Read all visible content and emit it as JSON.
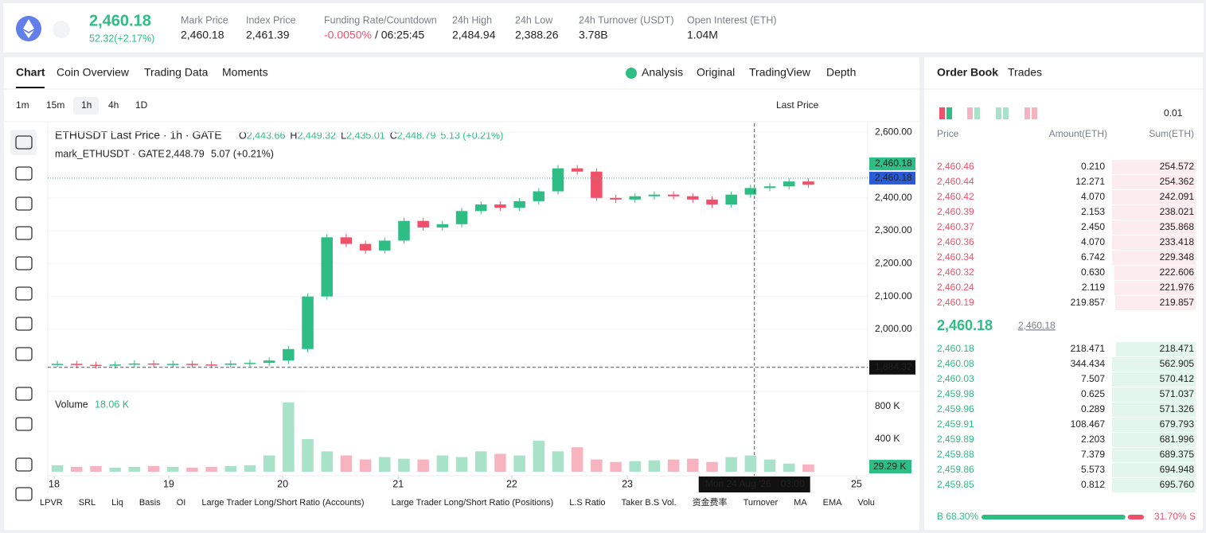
{
  "header": {
    "price": "2,460.18",
    "change": "52.32(+2.17%)",
    "stats": [
      {
        "label": "Mark Price",
        "value": "2,460.18"
      },
      {
        "label": "Index Price",
        "value": "2,461.39"
      },
      {
        "label": "Funding Rate/Countdown",
        "value": "-0.0050%",
        "extra": "/ 06:25:45"
      },
      {
        "label": "24h High",
        "value": "2,484.94"
      },
      {
        "label": "24h Low",
        "value": "2,388.26"
      },
      {
        "label": "24h Turnover (USDT)",
        "value": "3.78B"
      },
      {
        "label": "Open Interest (ETH)",
        "value": "1.04M"
      }
    ]
  },
  "chart_tabs": [
    "Chart",
    "Coin Overview",
    "Trading Data",
    "Moments"
  ],
  "chart_views": [
    "Analysis",
    "Original",
    "TradingView",
    "Depth"
  ],
  "intervals": [
    "1m",
    "15m",
    "1h",
    "4h",
    "1D"
  ],
  "price_source": "Last Price",
  "legend": {
    "symbol": "ETHUSDT Last Price · 1h · GATE",
    "items": [
      [
        "O",
        "2,443.66"
      ],
      [
        "H",
        "2,449.32"
      ],
      [
        "L",
        "2,435.01"
      ],
      [
        "C",
        "2,448.79"
      ]
    ],
    "change": "5.13 (+0.21%)"
  },
  "mark_legend": {
    "name": "mark_ETHUSDT · GATE",
    "value": "2,448.79",
    "change": "5.07 (+0.21%)"
  },
  "chart_data": {
    "type": "candlestick",
    "values": [
      1895,
      1892,
      1890,
      1893,
      1896,
      1894,
      1895,
      1893,
      1892,
      1896,
      1898,
      1905,
      1940,
      2100,
      2280,
      2260,
      2240,
      2270,
      2330,
      2310,
      2320,
      2360,
      2380,
      2370,
      2390,
      2420,
      2490,
      2480,
      2400,
      2395,
      2405,
      2410,
      2405,
      2395,
      2380,
      2410,
      2430,
      2435,
      2450,
      2440
    ],
    "ylim": [
      1816,
      2627
    ],
    "yticks": [
      {
        "value": 2000,
        "label": "2,000.00"
      },
      {
        "value": 2100,
        "label": "2,100.00"
      },
      {
        "value": 2200,
        "label": "2,200.00"
      },
      {
        "value": 2300,
        "label": "2,300.00"
      },
      {
        "value": 2400,
        "label": "2,400.00"
      },
      {
        "value": 2600,
        "label": "2,600.00"
      }
    ],
    "xlim": [
      0,
      42.5
    ],
    "xticks": [
      {
        "value": 0.33,
        "label": "18"
      },
      {
        "value": 6.28,
        "label": "19"
      },
      {
        "value": 12.2,
        "label": "20"
      },
      {
        "value": 18.2,
        "label": "21"
      },
      {
        "value": 24.1,
        "label": "22"
      },
      {
        "value": 30.1,
        "label": "23"
      },
      {
        "value": 42,
        "label": "25"
      }
    ],
    "last_price": {
      "value": 2460.18,
      "label": "2,460.18"
    },
    "crosshair": {
      "value": 1884.32,
      "label": "1,884.32",
      "x": 36.7,
      "date": "Mon 24 Aug '26",
      "time": "03:00"
    },
    "up_color": "#2ebd85",
    "down_color": "#f0516a"
  },
  "volume": {
    "label": "Volume",
    "value": "18.06 K",
    "values": [
      80,
      60,
      70,
      50,
      60,
      70,
      60,
      50,
      60,
      70,
      80,
      200,
      850,
      400,
      250,
      200,
      150,
      180,
      160,
      150,
      200,
      180,
      250,
      220,
      200,
      380,
      250,
      300,
      150,
      120,
      130,
      140,
      150,
      160,
      120,
      180,
      200,
      150,
      100,
      90
    ],
    "ylim": [
      0,
      956
    ],
    "yticks": [
      {
        "value": 400,
        "label": "400 K"
      },
      {
        "value": 800,
        "label": "800 K"
      }
    ],
    "last_label": "29.29 K"
  },
  "indicators": [
    "LPVR",
    "SRL",
    "Liq",
    "Basis",
    "OI",
    "Large Trader Long/Short Ratio (Accounts)",
    "Large Trader Long/Short Ratio (Positions)",
    "L.S Ratio",
    "Taker B.S Vol.",
    "资金费率",
    "Turnover",
    "MA",
    "EMA",
    "Volu"
  ],
  "order_book": {
    "tabs": [
      "Order Book",
      "Trades"
    ],
    "tick": "0.01",
    "columns": [
      "Price",
      "Amount(ETH)",
      "Sum(ETH)"
    ],
    "asks": [
      [
        "2,460.46",
        "0.210",
        "254.572"
      ],
      [
        "2,460.44",
        "12.271",
        "254.362"
      ],
      [
        "2,460.42",
        "4.070",
        "242.091"
      ],
      [
        "2,460.39",
        "2.153",
        "238.021"
      ],
      [
        "2,460.37",
        "2.450",
        "235.868"
      ],
      [
        "2,460.36",
        "4.070",
        "233.418"
      ],
      [
        "2,460.34",
        "6.742",
        "229.348"
      ],
      [
        "2,460.32",
        "0.630",
        "222.606"
      ],
      [
        "2,460.24",
        "2.119",
        "221.976"
      ],
      [
        "2,460.19",
        "219.857",
        "219.857"
      ]
    ],
    "last": "2,460.18",
    "mark": "2,460.18",
    "bids": [
      [
        "2,460.18",
        "218.471",
        "218.471"
      ],
      [
        "2,460.08",
        "344.434",
        "562.905"
      ],
      [
        "2,460.03",
        "7.507",
        "570.412"
      ],
      [
        "2,459.98",
        "0.625",
        "571.037"
      ],
      [
        "2,459.96",
        "0.289",
        "571.326"
      ],
      [
        "2,459.91",
        "108.467",
        "679.793"
      ],
      [
        "2,459.89",
        "2.203",
        "681.996"
      ],
      [
        "2,459.88",
        "7.379",
        "689.375"
      ],
      [
        "2,459.86",
        "5.573",
        "694.948"
      ],
      [
        "2,459.85",
        "0.812",
        "695.760"
      ]
    ],
    "buy": 68.3,
    "buy_label": "B 68.30%",
    "sell": 31.7,
    "sell_label": "31.70% S"
  }
}
